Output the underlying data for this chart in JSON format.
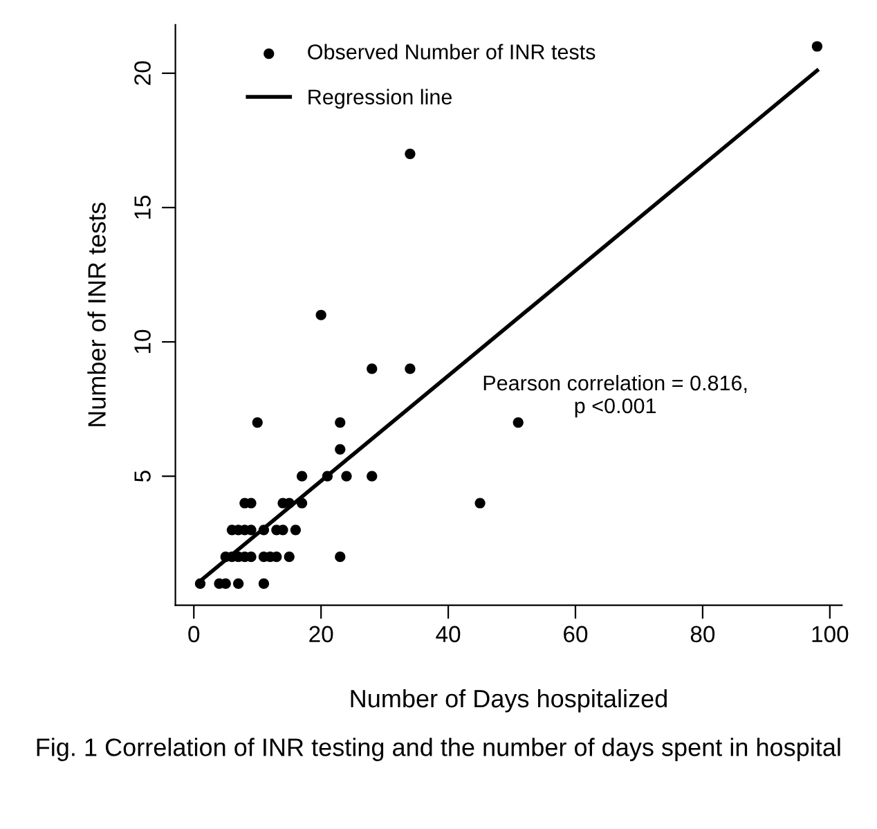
{
  "chart_data": {
    "type": "scatter",
    "xlabel": "Number of Days hospitalized",
    "ylabel": "Number of INR tests",
    "xlim": [
      -2.9,
      101.9
    ],
    "ylim": [
      0.2,
      21.8
    ],
    "xticks": [
      0,
      20,
      40,
      60,
      80,
      100
    ],
    "yticks": [
      5,
      10,
      15,
      20
    ],
    "grid": false,
    "legend": "top left",
    "series": [
      {
        "name": "Observed Number of INR tests",
        "marker": "circle",
        "color": "#000000",
        "x": [
          1,
          4,
          5,
          7,
          11,
          5,
          6,
          7,
          8,
          9,
          11,
          12,
          13,
          15,
          23,
          6,
          7,
          8,
          9,
          11,
          13,
          14,
          16,
          8,
          9,
          14,
          15,
          17,
          45,
          17,
          21,
          24,
          28,
          23,
          10,
          23,
          51,
          28,
          34,
          20,
          34,
          98
        ],
        "values": [
          1,
          1,
          1,
          1,
          1,
          2,
          2,
          2,
          2,
          2,
          2,
          2,
          2,
          2,
          2,
          3,
          3,
          3,
          3,
          3,
          3,
          3,
          3,
          4,
          4,
          4,
          4,
          4,
          4,
          5,
          5,
          5,
          5,
          6,
          7,
          7,
          7,
          9,
          9,
          11,
          17,
          21
        ]
      },
      {
        "name": "Regression line",
        "type": "line",
        "marker": "none",
        "color": "#000000",
        "line_style": "solid",
        "x": [
          1,
          98
        ],
        "values": [
          1.1,
          20.1
        ]
      }
    ],
    "annotations": [
      "Pearson correlation = 0.816,\np <0.001",
      "Fig. 1 Correlation of INR testing and the number of days spent in hospital"
    ]
  }
}
